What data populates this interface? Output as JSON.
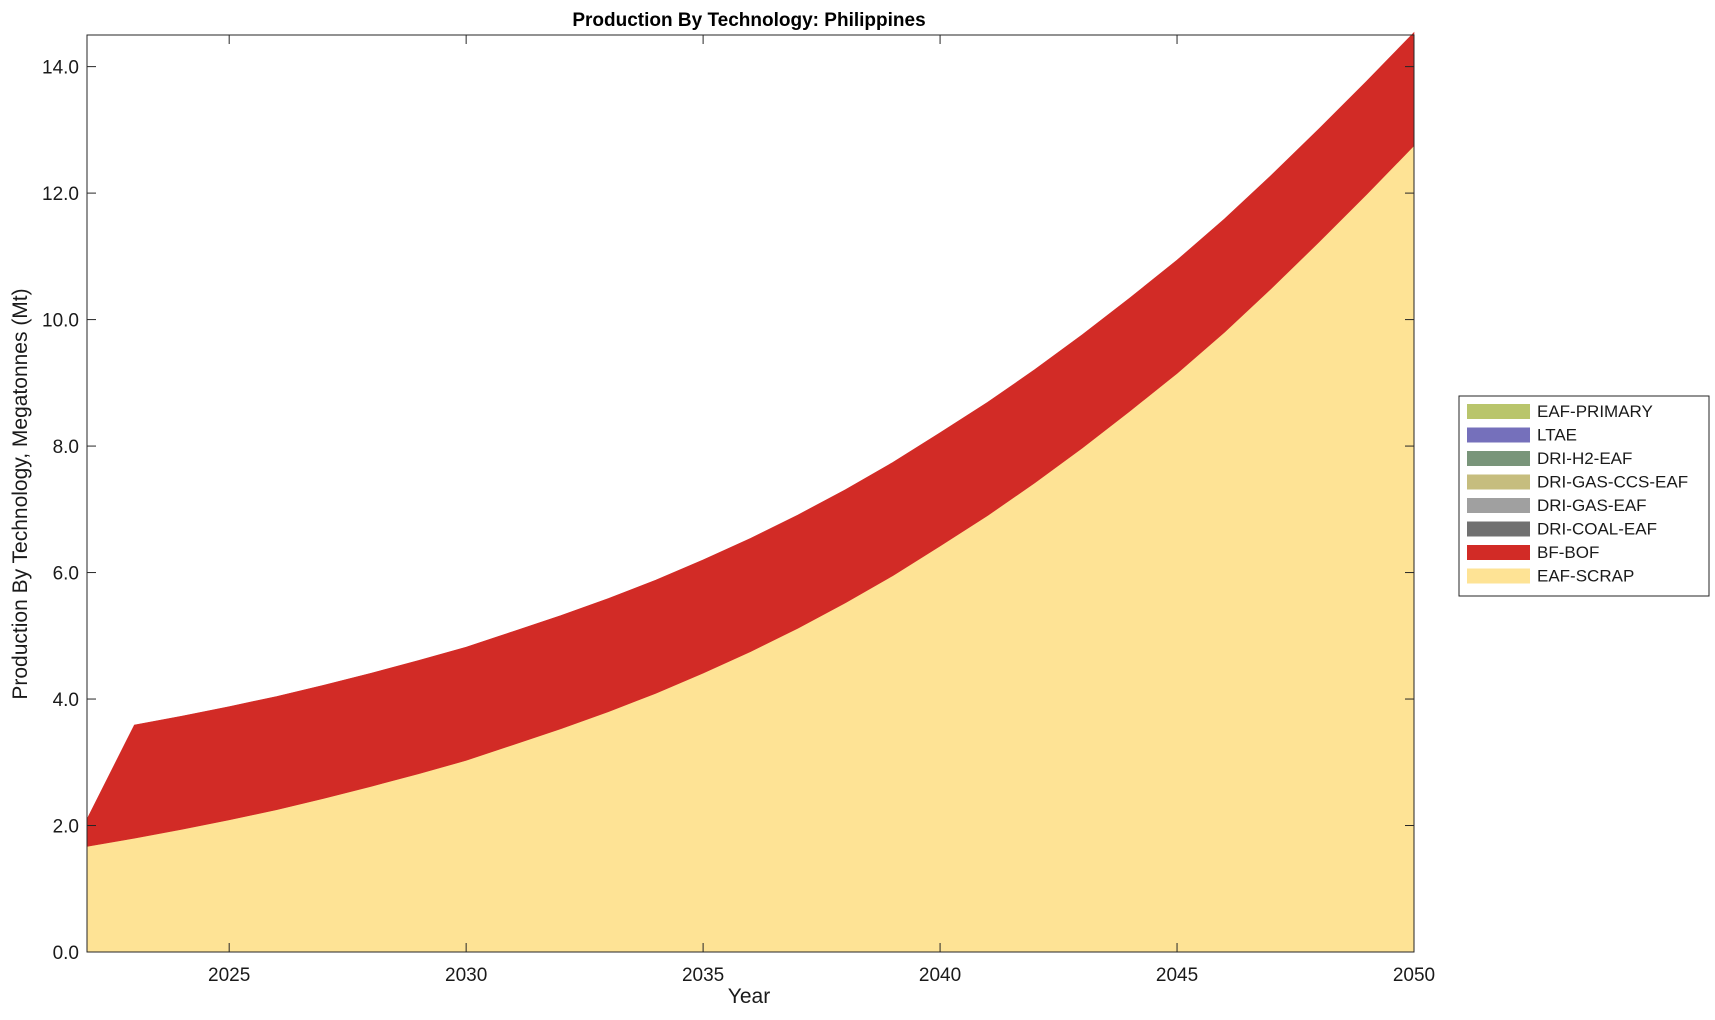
{
  "chart_data": {
    "type": "area",
    "stacked": true,
    "title": "Production By Technology: Philippines",
    "xlabel": "Year",
    "ylabel": "Production By Technology, Megatonnes (Mt)",
    "xlim": [
      2022,
      2050
    ],
    "ylim": [
      0,
      14.5
    ],
    "xticks": [
      2025,
      2030,
      2035,
      2040,
      2045,
      2050
    ],
    "yticks": [
      "0.0",
      "2.0",
      "4.0",
      "6.0",
      "8.0",
      "10.0",
      "12.0",
      "14.0"
    ],
    "grid": false,
    "legend_position": "right",
    "x": [
      2022,
      2023,
      2024,
      2025,
      2026,
      2027,
      2028,
      2029,
      2030,
      2031,
      2032,
      2033,
      2034,
      2035,
      2036,
      2037,
      2038,
      2039,
      2040,
      2041,
      2042,
      2043,
      2044,
      2045,
      2046,
      2047,
      2048,
      2049,
      2050
    ],
    "series": [
      {
        "name": "EAF-SCRAP",
        "color": "#FEE395",
        "values": [
          1.67,
          1.8,
          1.94,
          2.09,
          2.25,
          2.43,
          2.62,
          2.82,
          3.03,
          3.28,
          3.53,
          3.8,
          4.09,
          4.41,
          4.75,
          5.12,
          5.52,
          5.95,
          6.42,
          6.9,
          7.42,
          7.97,
          8.55,
          9.15,
          9.8,
          10.5,
          11.23,
          11.98,
          12.75
        ]
      },
      {
        "name": "BF-BOF",
        "color": "#D22B26",
        "values": [
          0.43,
          1.79,
          1.79,
          1.79,
          1.79,
          1.79,
          1.79,
          1.79,
          1.79,
          1.79,
          1.79,
          1.79,
          1.79,
          1.79,
          1.79,
          1.79,
          1.79,
          1.79,
          1.79,
          1.79,
          1.79,
          1.79,
          1.79,
          1.79,
          1.79,
          1.79,
          1.79,
          1.79,
          1.79
        ]
      },
      {
        "name": "DRI-COAL-EAF",
        "color": "#707070",
        "values": [
          0,
          0,
          0,
          0,
          0,
          0,
          0,
          0,
          0,
          0,
          0,
          0,
          0,
          0,
          0,
          0,
          0,
          0,
          0,
          0,
          0,
          0,
          0,
          0,
          0,
          0,
          0,
          0,
          0
        ]
      },
      {
        "name": "DRI-GAS-EAF",
        "color": "#A0A0A0",
        "values": [
          0,
          0,
          0,
          0,
          0,
          0,
          0,
          0,
          0,
          0,
          0,
          0,
          0,
          0,
          0,
          0,
          0,
          0,
          0,
          0,
          0,
          0,
          0,
          0,
          0,
          0,
          0,
          0,
          0
        ]
      },
      {
        "name": "DRI-GAS-CCS-EAF",
        "color": "#C6BD7E",
        "values": [
          0,
          0,
          0,
          0,
          0,
          0,
          0,
          0,
          0,
          0,
          0,
          0,
          0,
          0,
          0,
          0,
          0,
          0,
          0,
          0,
          0,
          0,
          0,
          0,
          0,
          0,
          0,
          0,
          0
        ]
      },
      {
        "name": "DRI-H2-EAF",
        "color": "#79957A",
        "values": [
          0,
          0,
          0,
          0,
          0,
          0,
          0,
          0,
          0,
          0,
          0,
          0,
          0,
          0,
          0,
          0,
          0,
          0,
          0,
          0,
          0,
          0,
          0,
          0,
          0,
          0,
          0,
          0,
          0
        ]
      },
      {
        "name": "LTAE",
        "color": "#7570BB",
        "values": [
          0,
          0,
          0,
          0,
          0,
          0,
          0,
          0,
          0,
          0,
          0,
          0,
          0,
          0,
          0,
          0,
          0,
          0,
          0,
          0,
          0,
          0,
          0,
          0,
          0,
          0,
          0,
          0,
          0
        ]
      },
      {
        "name": "EAF-PRIMARY",
        "color": "#B9C56C",
        "values": [
          0,
          0,
          0,
          0,
          0,
          0,
          0,
          0,
          0,
          0,
          0,
          0,
          0,
          0,
          0,
          0,
          0,
          0,
          0,
          0,
          0,
          0,
          0,
          0,
          0,
          0,
          0,
          0,
          0
        ]
      }
    ]
  }
}
